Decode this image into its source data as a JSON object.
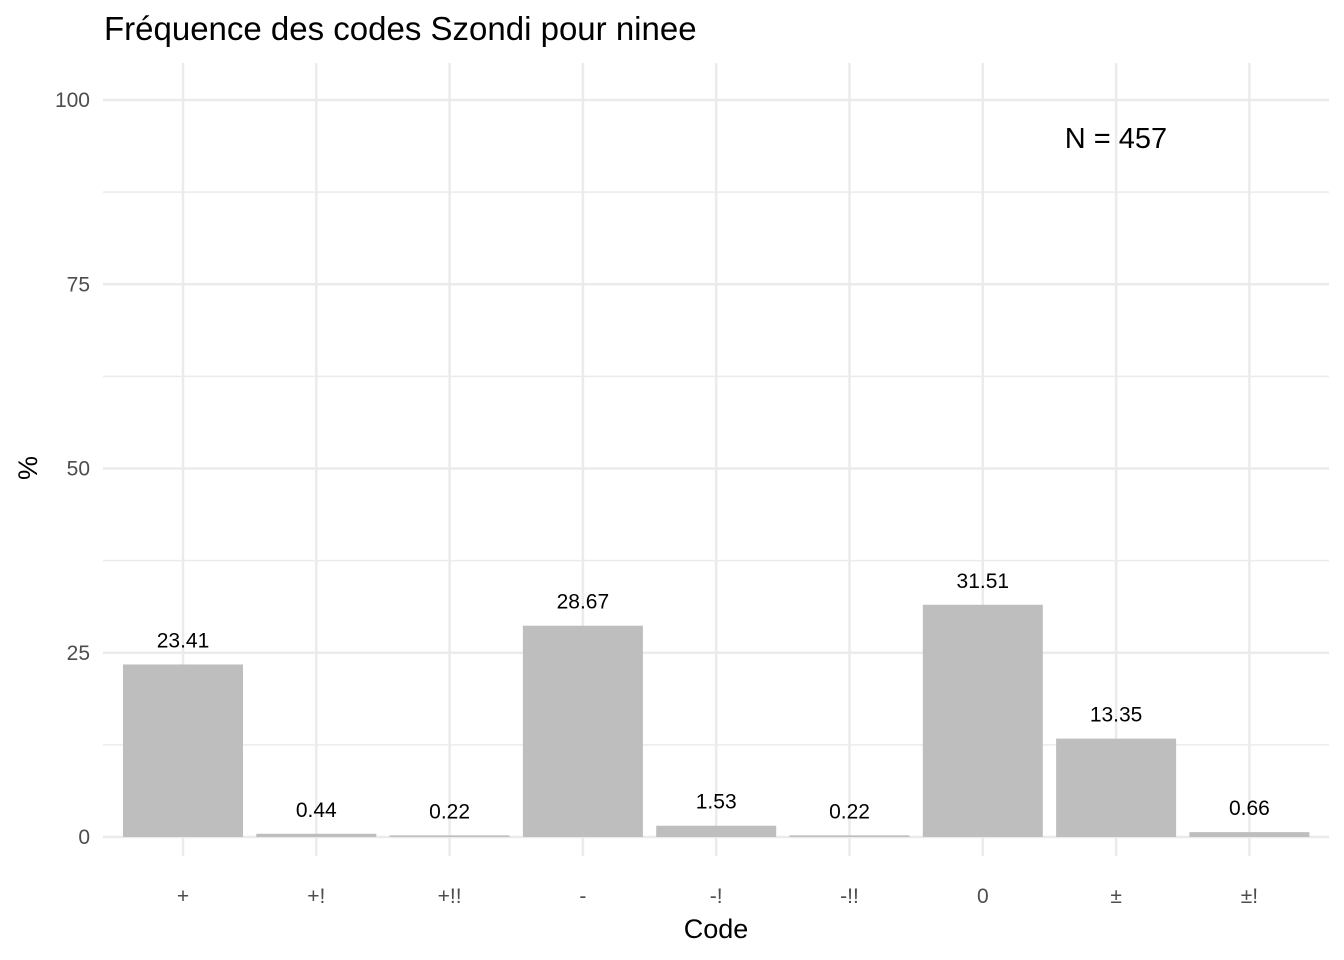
{
  "chart_data": {
    "type": "bar",
    "title": "Fréquence des codes Szondi pour ninee",
    "xlabel": "Code",
    "ylabel": "%",
    "categories": [
      "+",
      "+!",
      "+!!",
      "-",
      "-!",
      "-!!",
      "0",
      "±",
      "±!"
    ],
    "values": [
      23.41,
      0.44,
      0.22,
      28.67,
      1.53,
      0.22,
      31.51,
      13.35,
      0.66
    ],
    "data_labels": [
      "23.41",
      "0.44",
      "0.22",
      "28.67",
      "1.53",
      "0.22",
      "31.51",
      "13.35",
      "0.66"
    ],
    "ylim": [
      0,
      100
    ],
    "yticks": [
      0,
      25,
      50,
      75,
      100
    ],
    "ytick_labels": [
      "0",
      "25",
      "50",
      "75",
      "100"
    ],
    "annotation": "N = 457",
    "annotation_position": "top-right",
    "grid": true,
    "legend": "none",
    "bar_color": "#bebebe",
    "grid_color": "#ebebeb"
  }
}
